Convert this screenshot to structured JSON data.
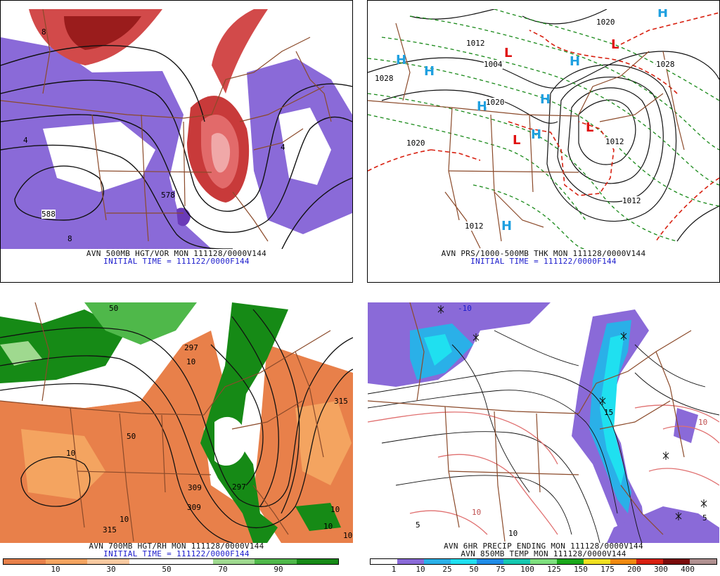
{
  "panels": {
    "p1": {
      "caption_line1": "AVN 500MB HGT/VOR MON 111128/0000V144",
      "caption_line2": "INITIAL TIME = 111122/0000F144",
      "labels": [
        "588",
        "578",
        "8",
        "4",
        "4",
        "8"
      ]
    },
    "p2": {
      "caption_line1": "AVN PRS/1000-500MB THK MON 111128/0000V144",
      "caption_line2": "INITIAL TIME = 111122/0000F144",
      "labels": [
        "1028",
        "1012",
        "1004",
        "1020",
        "1020",
        "1020",
        "1028",
        "1012",
        "1012",
        "1012"
      ],
      "highs": [
        "H",
        "H",
        "H",
        "H",
        "H",
        "H",
        "H",
        "H"
      ],
      "lows": [
        "L",
        "L",
        "L",
        "L"
      ]
    },
    "p3": {
      "caption_line1": "AVN 700MB HGT/RH MON 111128/0000V144",
      "caption_line2": "INITIAL TIME = 111122/0000F144",
      "labels": [
        "50",
        "297",
        "10",
        "50",
        "315",
        "10",
        "309",
        "309",
        "297",
        "315",
        "10",
        "10",
        "10",
        "10"
      ],
      "scale_labels": [
        "10",
        "30",
        "50",
        "70",
        "90"
      ],
      "scale_colors": [
        "#e8804a",
        "#f4a460",
        "#f8c9a0",
        "#ffffff",
        "#ffffff",
        "#9fd98f",
        "#4fb84a",
        "#168a16"
      ]
    },
    "p4": {
      "caption_line1": "AVN 6HR PRECIP ENDING MON 111128/0000V144",
      "caption_line2": "AVN 850MB TEMP MON 111128/0000V144",
      "labels": [
        "10",
        "10",
        "10",
        "5",
        "-10",
        "15",
        "5"
      ],
      "scale_labels": [
        "1",
        "10",
        "25",
        "50",
        "75",
        "100",
        "125",
        "150",
        "175",
        "200",
        "300",
        "400"
      ],
      "scale_colors": [
        "#ffffff",
        "#8a6ad8",
        "#2ab0e8",
        "#1fe0f0",
        "#1f8ce8",
        "#14c8b0",
        "#7ee07e",
        "#1aa81a",
        "#f0e020",
        "#f08a10",
        "#d82010",
        "#7a0a0a",
        "#b09090"
      ]
    }
  }
}
